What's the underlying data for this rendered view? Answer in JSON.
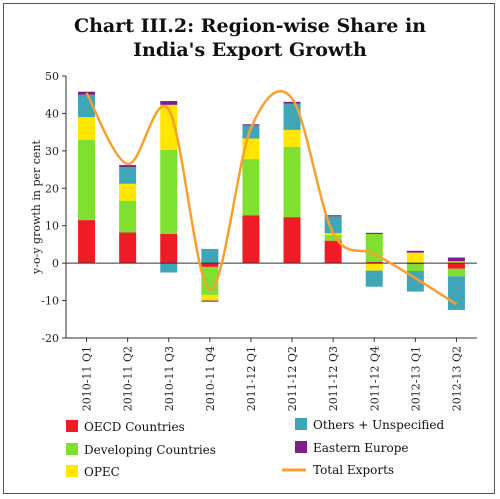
{
  "title_line1": "Chart III.2: Region-wise Share in",
  "title_line2": "India's Export Growth",
  "chart_data": {
    "type": "bar",
    "stacked": true,
    "title": "Chart III.2: Region-wise Share in India's Export Growth",
    "ylabel": "y-o-y growth in per cent",
    "xlabel": "",
    "ylim": [
      -20,
      50
    ],
    "yticks": [
      -20,
      -10,
      0,
      10,
      20,
      30,
      40,
      50
    ],
    "categories": [
      "2010-11 Q1",
      "2010-11 Q2",
      "2010-11 Q3",
      "2010-11 Q4",
      "2011-12 Q1",
      "2011-12 Q2",
      "2011-12 Q3",
      "2011-12 Q4",
      "2012-13 Q1",
      "2012-13 Q2"
    ],
    "series": [
      {
        "name": "OECD Countries",
        "color": "#ee1c25",
        "values": [
          11.5,
          8.2,
          7.8,
          -1.0,
          12.8,
          12.3,
          6.0,
          0.3,
          -0.3,
          -1.5
        ]
      },
      {
        "name": "Developing Countries",
        "color": "#7fe030",
        "values": [
          21.5,
          8.5,
          22.5,
          -7.5,
          15.0,
          18.8,
          1.5,
          7.5,
          -1.8,
          -2.0
        ]
      },
      {
        "name": "OPEC",
        "color": "#ffe600",
        "values": [
          6.0,
          4.5,
          12.0,
          -1.5,
          5.5,
          4.5,
          0.5,
          -2.0,
          2.8,
          0.5
        ]
      },
      {
        "name": "Others + Unspecified",
        "color": "#3fa6b8",
        "values": [
          6.0,
          4.5,
          -2.5,
          3.8,
          3.5,
          7.0,
          4.5,
          -4.3,
          -5.5,
          -9.0
        ]
      },
      {
        "name": "Eastern Europe",
        "color": "#7b1f86",
        "values": [
          0.8,
          0.5,
          1.0,
          -0.3,
          0.3,
          0.5,
          0.3,
          0.3,
          0.5,
          1.0
        ]
      }
    ],
    "line": {
      "name": "Total Exports",
      "color": "#f7a030",
      "values": [
        45.5,
        26.5,
        41.0,
        -7.0,
        36.0,
        44.0,
        8.0,
        2.5,
        -4.0,
        -11.0
      ]
    },
    "grid": false,
    "legend_position": "bottom"
  },
  "legend": {
    "oecd": "OECD Countries",
    "developing": "Developing Countries",
    "opec": "OPEC",
    "others": "Others + Unspecified",
    "eastern": "Eastern Europe",
    "total": "Total Exports"
  }
}
